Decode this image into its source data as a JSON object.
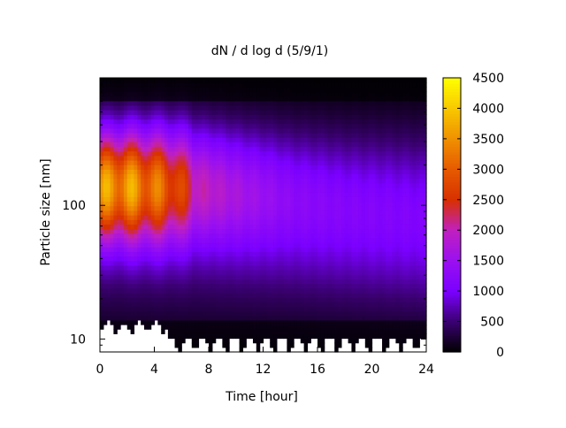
{
  "chart_data": {
    "type": "heatmap",
    "title": "dN / d log d (5/9/1)",
    "xlabel": "Time [hour]",
    "ylabel": "Particle size [nm]",
    "x_range": [
      0,
      24
    ],
    "x_ticks": [
      "0",
      "4",
      "8",
      "12",
      "16",
      "20",
      "24"
    ],
    "y_scale": "log",
    "y_range": [
      8,
      900
    ],
    "y_ticks": [
      {
        "value": 10,
        "label": "10"
      },
      {
        "value": 100,
        "label": "100"
      }
    ],
    "colorbar": {
      "range": [
        0,
        4500
      ],
      "ticks": [
        "0",
        "500",
        "1000",
        "1500",
        "2000",
        "2500",
        "3000",
        "3500",
        "4000",
        "4500"
      ],
      "palette": [
        "#000000",
        "#3a0070",
        "#7a00ff",
        "#9a10f0",
        "#c020c0",
        "#d83000",
        "#e65a00",
        "#f09000",
        "#f8c800",
        "#ffff00"
      ]
    },
    "mode_peak": [
      {
        "x": 0,
        "diameter": 140,
        "value": 3400
      },
      {
        "x": 2,
        "diameter": 140,
        "value": 3500
      },
      {
        "x": 4,
        "diameter": 140,
        "value": 3100
      },
      {
        "x": 5.5,
        "diameter": 140,
        "value": 2800
      },
      {
        "x": 7,
        "diameter": 140,
        "value": 2000
      },
      {
        "x": 10,
        "diameter": 130,
        "value": 1600
      },
      {
        "x": 14,
        "diameter": 120,
        "value": 1200
      },
      {
        "x": 18,
        "diameter": 110,
        "value": 1050
      },
      {
        "x": 24,
        "diameter": 100,
        "value": 950
      }
    ],
    "grid": false,
    "legend": "colorbar-right"
  }
}
